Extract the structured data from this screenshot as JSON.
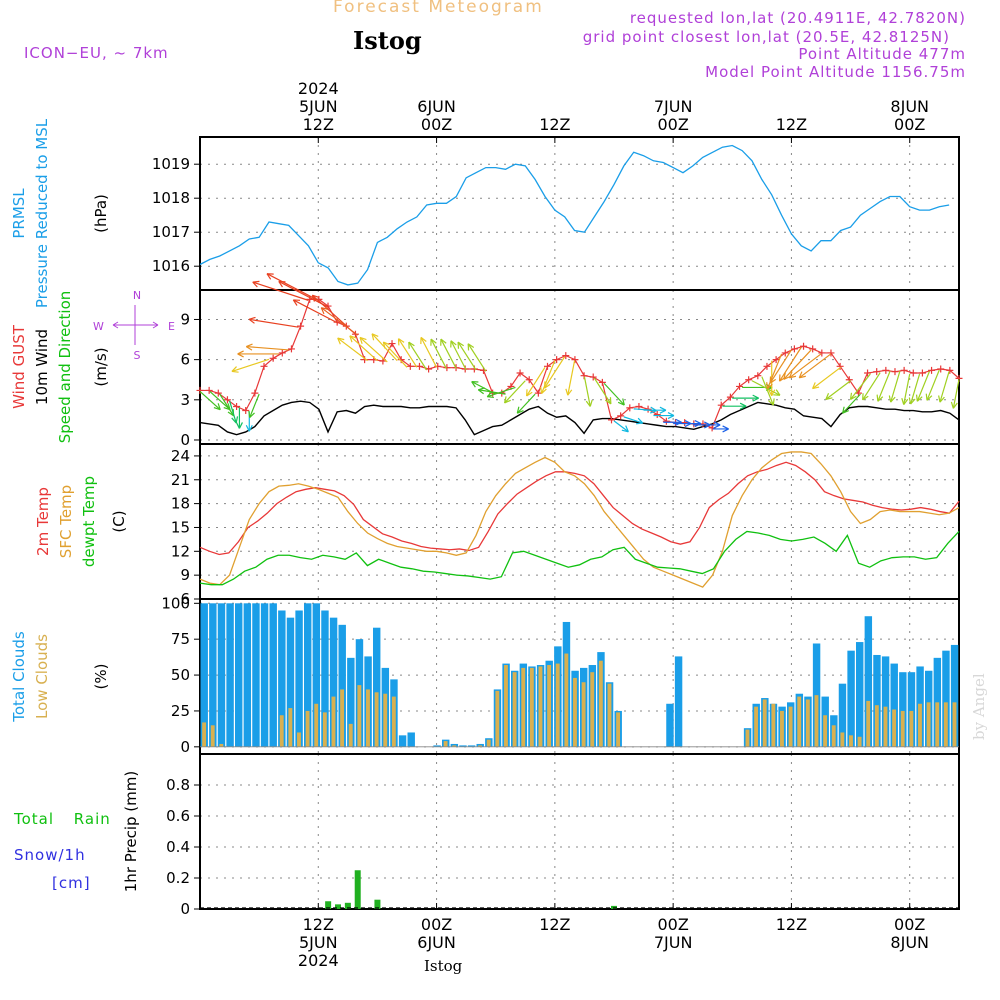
{
  "header": {
    "title": "Forecast Meteogram",
    "station": "Istog",
    "model": "ICON−EU, ~ 7km",
    "requested": "requested lon,lat (20.4911E, 42.7820N)",
    "gridpoint": "grid point closest lon,lat (20.5E, 42.8125N)",
    "point_alt": "Point Altitude 477m",
    "model_alt": "Model Point Altitude 1156.75m",
    "watermark": "by Angel",
    "footer": "Istog"
  },
  "colors": {
    "pressure": "#1a9ee8",
    "gust": "#e83838",
    "wind": "#000000",
    "temp2m": "#e83838",
    "sfc": "#e0a030",
    "dewpt": "#10c010",
    "total_clouds": "#1a9ee8",
    "low_clouds": "#d8b050",
    "rain": "#20b020",
    "snow": "#3030e0",
    "purple": "#b040d8"
  },
  "time_axis": {
    "top_labels": [
      {
        "t": 12,
        "lines": [
          "2024",
          "5JUN",
          "12Z"
        ]
      },
      {
        "t": 24,
        "lines": [
          "6JUN",
          "00Z"
        ]
      },
      {
        "t": 36,
        "lines": [
          "12Z"
        ]
      },
      {
        "t": 48,
        "lines": [
          "7JUN",
          "00Z"
        ]
      },
      {
        "t": 60,
        "lines": [
          "12Z"
        ]
      },
      {
        "t": 72,
        "lines": [
          "8JUN",
          "00Z"
        ]
      }
    ],
    "bottom_labels": [
      {
        "t": 12,
        "lines": [
          "12Z",
          "5JUN",
          "2024"
        ]
      },
      {
        "t": 24,
        "lines": [
          "00Z",
          "6JUN"
        ]
      },
      {
        "t": 36,
        "lines": [
          "12Z"
        ]
      },
      {
        "t": 48,
        "lines": [
          "00Z",
          "7JUN"
        ]
      },
      {
        "t": 60,
        "lines": [
          "12Z"
        ]
      },
      {
        "t": 72,
        "lines": [
          "00Z",
          "8JUN"
        ]
      }
    ]
  },
  "chart_data": [
    {
      "type": "line",
      "id": "pressure",
      "ylabels": [
        {
          "text": "PRMSL",
          "color": "#1a9ee8"
        },
        {
          "text": "Pressure Reduced to MSL",
          "color": "#1a9ee8"
        }
      ],
      "unit": "(hPa)",
      "ylim": [
        1015.3,
        1019.8
      ],
      "yticks": [
        1016,
        1017,
        1018,
        1019
      ],
      "grid": true,
      "series": [
        {
          "values": [
            1016.05,
            1016.2,
            1016.3,
            1016.45,
            1016.6,
            1016.8,
            1016.85,
            1017.3,
            1017.25,
            1017.2,
            1016.9,
            1016.6,
            1016.1,
            1015.95,
            1015.55,
            1015.45,
            1015.5,
            1015.9,
            1016.7,
            1016.85,
            1017.1,
            1017.3,
            1017.45,
            1017.8,
            1017.85,
            1017.85,
            1018.05,
            1018.6,
            1018.75,
            1018.9,
            1018.9,
            1018.85,
            1019.0,
            1018.95,
            1018.55,
            1018.05,
            1017.65,
            1017.45,
            1017.05,
            1017.0,
            1017.45,
            1017.9,
            1018.4,
            1018.95,
            1019.35,
            1019.25,
            1019.1,
            1019.05,
            1018.9,
            1018.75,
            1018.95,
            1019.2,
            1019.35,
            1019.5,
            1019.55,
            1019.4,
            1019.1,
            1018.55,
            1018.1,
            1017.5,
            1016.95,
            1016.6,
            1016.45,
            1016.75,
            1016.75,
            1017.05,
            1017.15,
            1017.5,
            1017.7,
            1017.9,
            1018.05,
            1018.05,
            1017.75,
            1017.65,
            1017.65,
            1017.75,
            1017.8
          ]
        }
      ]
    },
    {
      "type": "line",
      "id": "wind",
      "ylabels": [
        {
          "text": "Wind GUST",
          "color": "#e83838"
        },
        {
          "text": "10m Wind",
          "color": "#000000"
        },
        {
          "text": "Speed and Direction",
          "color": "#10c010"
        }
      ],
      "unit": "(m/s)",
      "compass": {
        "n": "N",
        "s": "S",
        "w": "W",
        "e": "E"
      },
      "ylim": [
        -0.3,
        11.2
      ],
      "yticks": [
        0,
        3,
        6,
        9
      ],
      "grid": true,
      "series": [
        {
          "name": "gust",
          "values": [
            3.7,
            3.7,
            3.5,
            3.0,
            2.5,
            2.2,
            3.5,
            5.5,
            6.1,
            6.5,
            6.8,
            8.5,
            10.5,
            10.5,
            10.0,
            8.8,
            8.5,
            7.9,
            6.0,
            6.0,
            5.9,
            7.2,
            6.0,
            5.5,
            5.5,
            5.3,
            5.5,
            5.4,
            5.4,
            5.3,
            5.3,
            5.2,
            3.5,
            3.5,
            4.0,
            5.0,
            4.5,
            3.5,
            5.5,
            6.0,
            6.3,
            6.0,
            4.8,
            4.7,
            4.3,
            1.5,
            1.8,
            2.4,
            2.5,
            2.3,
            1.9,
            1.4,
            1.3,
            1.3,
            1.2,
            1.2,
            0.9,
            2.6,
            3.2,
            4.0,
            4.5,
            4.8,
            5.5,
            6.0,
            6.5,
            6.8,
            7.0,
            6.8,
            6.5,
            6.5,
            5.5,
            4.5,
            3.5,
            5.0,
            5.1,
            5.2,
            5.1,
            5.2,
            5.0,
            5.0,
            5.2,
            5.3,
            5.2,
            4.6
          ]
        },
        {
          "name": "wind10m",
          "values": [
            1.3,
            1.2,
            1.1,
            0.6,
            0.4,
            0.6,
            1.0,
            1.8,
            2.2,
            2.6,
            2.8,
            2.9,
            2.8,
            2.3,
            0.6,
            2.1,
            2.2,
            2.0,
            2.5,
            2.6,
            2.5,
            2.5,
            2.5,
            2.4,
            2.4,
            2.5,
            2.5,
            2.5,
            2.4,
            1.5,
            0.4,
            0.7,
            1.0,
            1.1,
            1.5,
            1.9,
            2.3,
            2.5,
            2.0,
            1.7,
            1.8,
            1.3,
            0.5,
            1.5,
            1.6,
            1.6,
            1.5,
            1.4,
            1.3,
            1.2,
            1.1,
            1.0,
            1.0,
            0.9,
            0.8,
            1.0,
            1.2,
            1.5,
            1.9,
            2.2,
            2.5,
            2.8,
            2.7,
            2.6,
            2.4,
            2.3,
            1.8,
            1.7,
            1.6,
            1.0,
            1.9,
            2.4,
            2.5,
            2.5,
            2.4,
            2.3,
            2.3,
            2.2,
            2.2,
            2.1,
            2.1,
            2.2,
            2.0,
            1.5
          ]
        }
      ],
      "arrows_dir_deg": [
        135,
        135,
        150,
        165,
        180,
        180,
        200,
        250,
        270,
        275,
        280,
        290,
        300,
        300,
        300,
        315,
        310,
        310,
        315,
        315,
        320,
        320,
        330,
        330,
        335,
        335,
        335,
        335,
        330,
        330,
        300,
        280,
        250,
        220,
        220,
        210,
        200,
        210,
        190,
        170,
        150,
        140,
        130,
        110,
        95,
        90,
        90,
        90,
        90,
        90,
        90,
        90,
        90,
        90,
        90,
        90,
        120,
        160,
        180,
        200,
        210,
        210,
        220,
        230,
        230,
        230,
        230,
        220,
        215,
        210,
        200,
        195,
        190,
        195,
        200,
        200,
        195,
        190
      ]
    },
    {
      "type": "line",
      "id": "temperature",
      "ylabels": [
        {
          "text": "2m Temp",
          "color": "#e83838"
        },
        {
          "text": "SFC Temp",
          "color": "#e0a030"
        },
        {
          "text": "dewpt Temp",
          "color": "#10c010"
        }
      ],
      "unit": "(C)",
      "ylim": [
        6,
        25.5
      ],
      "yticks": [
        6,
        9,
        12,
        15,
        18,
        21,
        24
      ],
      "grid": true,
      "series": [
        {
          "name": "t2m",
          "values": [
            12.5,
            12.0,
            11.6,
            11.8,
            13.2,
            15.0,
            15.8,
            16.8,
            18.0,
            18.8,
            19.5,
            19.8,
            20.0,
            19.8,
            19.6,
            19.0,
            17.9,
            16.0,
            15.1,
            14.2,
            13.8,
            13.3,
            13.0,
            12.6,
            12.4,
            12.3,
            12.2,
            12.3,
            12.1,
            12.5,
            14.5,
            16.7,
            18.0,
            19.2,
            20.0,
            20.8,
            21.5,
            22.0,
            22.0,
            21.8,
            21.5,
            20.5,
            19.0,
            17.5,
            16.5,
            15.5,
            14.8,
            14.3,
            13.8,
            13.2,
            12.9,
            13.2,
            15.0,
            17.5,
            18.5,
            19.3,
            20.5,
            21.5,
            22.0,
            22.3,
            22.8,
            23.2,
            22.8,
            22.0,
            21.0,
            19.5,
            19.0,
            18.6,
            18.4,
            18.2,
            17.8,
            17.5,
            17.3,
            17.2,
            17.3,
            17.5,
            17.3,
            17.0,
            16.8,
            18.3
          ]
        },
        {
          "name": "sfc",
          "values": [
            8.5,
            8.0,
            7.8,
            9.0,
            12.5,
            16.0,
            18.0,
            19.5,
            20.2,
            20.3,
            20.5,
            20.2,
            19.8,
            19.3,
            18.8,
            17.0,
            15.5,
            14.3,
            13.6,
            13.0,
            12.6,
            12.4,
            12.2,
            12.0,
            12.0,
            11.8,
            11.5,
            11.8,
            14.0,
            17.0,
            19.0,
            20.5,
            21.8,
            22.5,
            23.2,
            23.8,
            23.2,
            22.0,
            21.5,
            20.5,
            19.0,
            17.0,
            15.5,
            14.0,
            12.5,
            11.0,
            10.0,
            9.5,
            9.0,
            8.5,
            8.0,
            7.5,
            9.0,
            12.0,
            16.5,
            19.0,
            21.0,
            22.5,
            23.5,
            24.3,
            24.5,
            24.5,
            24.3,
            23.0,
            21.5,
            19.5,
            17.0,
            15.5,
            16.0,
            17.0,
            17.2,
            17.0,
            17.0,
            17.0,
            16.8,
            16.6,
            16.8,
            17.5
          ]
        },
        {
          "name": "dewpt",
          "values": [
            8.0,
            7.8,
            7.8,
            8.5,
            9.5,
            10.0,
            11.0,
            11.5,
            11.5,
            11.2,
            11.0,
            11.5,
            11.3,
            11.0,
            11.8,
            10.2,
            11.0,
            10.5,
            10.0,
            9.8,
            9.5,
            9.4,
            9.2,
            9.0,
            8.9,
            8.7,
            8.5,
            8.8,
            11.8,
            12.0,
            11.5,
            11.0,
            10.5,
            10.0,
            10.3,
            11.0,
            11.3,
            12.2,
            12.5,
            11.0,
            10.5,
            10.0,
            9.9,
            9.8,
            9.5,
            9.2,
            9.8,
            12.0,
            13.5,
            14.5,
            14.3,
            14.0,
            13.5,
            13.3,
            13.5,
            13.8,
            13.0,
            12.0,
            14.0,
            10.5,
            10.0,
            10.8,
            11.2,
            11.3,
            11.3,
            11.0,
            11.2,
            13.0,
            14.5
          ]
        }
      ]
    },
    {
      "type": "bar",
      "id": "clouds",
      "ylabels": [
        {
          "text": "Total Clouds",
          "color": "#1a9ee8"
        },
        {
          "text": "Low Clouds",
          "color": "#d8b050"
        }
      ],
      "unit": "(%)",
      "ylim": [
        -5,
        103
      ],
      "yticks": [
        0,
        25,
        50,
        75,
        100
      ],
      "grid": true,
      "series": [
        {
          "name": "total",
          "values": [
            100,
            100,
            100,
            100,
            100,
            100,
            100,
            100,
            100,
            95,
            90,
            95,
            100,
            100,
            95,
            90,
            85,
            62,
            75,
            63,
            83,
            55,
            47,
            8,
            10,
            0,
            0,
            1,
            5,
            2,
            1,
            1,
            2,
            6,
            40,
            58,
            53,
            58,
            56,
            57,
            60,
            70,
            87,
            53,
            55,
            57,
            66,
            45,
            25,
            0,
            0,
            0,
            0,
            0,
            30,
            63,
            0,
            0,
            0,
            0,
            0,
            0,
            0,
            13,
            30,
            34,
            30,
            28,
            31,
            37,
            35,
            72,
            35,
            22,
            44,
            67,
            73,
            91,
            64,
            63,
            58,
            52,
            52,
            56,
            53,
            62,
            67,
            71
          ]
        },
        {
          "name": "low",
          "values": [
            17,
            15,
            2,
            0,
            0,
            0,
            0,
            0,
            0,
            22,
            27,
            10,
            25,
            30,
            24,
            35,
            40,
            16,
            43,
            40,
            38,
            37,
            35,
            0,
            0,
            0,
            0,
            0,
            4,
            1,
            0,
            0,
            1,
            5,
            39,
            57,
            52,
            55,
            55,
            56,
            57,
            58,
            65,
            48,
            45,
            52,
            60,
            44,
            24,
            0,
            0,
            0,
            0,
            0,
            0,
            0,
            0,
            0,
            0,
            0,
            0,
            0,
            0,
            12,
            28,
            33,
            30,
            25,
            28,
            35,
            33,
            36,
            22,
            15,
            10,
            8,
            7,
            32,
            29,
            28,
            26,
            25,
            25,
            30,
            31,
            31,
            31,
            31
          ]
        }
      ]
    },
    {
      "type": "bar",
      "id": "precip",
      "ylabels": [
        {
          "text": "1hr Precip (mm)",
          "color": "#000000"
        }
      ],
      "side_labels": [
        {
          "text": "Total Rain",
          "color": "#10c010"
        },
        {
          "text": "Snow/1h",
          "color": "#3030e0"
        },
        {
          "text": "[cm]",
          "color": "#3030e0"
        }
      ],
      "ylim": [
        0,
        1.0
      ],
      "yticks": [
        0,
        0.2,
        0.4,
        0.6,
        0.8
      ],
      "grid": true,
      "series": [
        {
          "name": "rain",
          "points": [
            {
              "t": 13,
              "v": 0.05
            },
            {
              "t": 14,
              "v": 0.03
            },
            {
              "t": 15,
              "v": 0.04
            },
            {
              "t": 16,
              "v": 0.25
            },
            {
              "t": 18,
              "v": 0.06
            },
            {
              "t": 42,
              "v": 0.02
            }
          ]
        }
      ]
    }
  ]
}
